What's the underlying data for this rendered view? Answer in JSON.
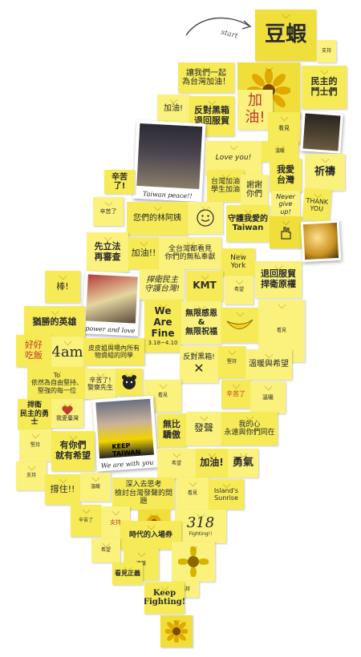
{
  "start_label": "start",
  "notes": {
    "title": "豆蝦",
    "taiwan_cheer": "讓我們一起\n為台灣加油！",
    "jiayou": "加油!",
    "fight_dark": "反對黑箱\n退回服貿",
    "democracy": "民主的\n鬥士們",
    "thanks": "謝謝\n你們",
    "love_you": "Love you!",
    "xinku": "辛苦了!",
    "pray": "祈禱",
    "i_love_taiwan": "我愛\n台灣",
    "taiwan_students": "台灣加油\n學生加油",
    "never": "Never\ngive up!",
    "thank_you": "THANK\nYOU",
    "feeling": "您們的林阿姨",
    "guard_taiwan": "守護我愛的\nTaiwan",
    "first_law": "先立法\n再審查",
    "jiayou2": "加油!!",
    "whole_taiwan": "全台灣都看見\n你們的無私奉獻",
    "newyork": "New York",
    "return_trade": "退回服貿\n捍衛原權",
    "democracy_guard": "捍衛民主\n守護台灣!",
    "kmt": "KMT",
    "stick": "棒!",
    "hero": "猶勝的英雄",
    "we_are_fine": "We\nAre\nFine",
    "we_dates": "3.18~4.10",
    "infinite": "無限感恩\n&\n無限祝福",
    "hold": "好好\n吃飯",
    "four_am": "4am",
    "thanks_everyone": "皮皮姐與場內所有\n物資組的同學",
    "against": "反對黑箱!",
    "cross": "✕",
    "warmth": "溫暖與希望",
    "to_you": "To\n依然為自由堅持、\n堅強的每一位",
    "tired": "辛苦了!\n警察先生",
    "brave": "捍衛\n民主的勇士",
    "love_taiwan": "我愛臺灣",
    "have_us": "有你們\n就有希望",
    "incomparable": "無比\n驕傲",
    "speak": "發聲",
    "my_heart": "我的心\n永遠與你們同在",
    "cheer_more": "加油!",
    "courage": "勇氣",
    "support": "撐住!!",
    "reflect": "深入去思考\n檢討台灣發聲的問題",
    "island": "Island's\nSunrise",
    "time": "時代的入場券",
    "n318": "318",
    "fighting_318": "Fighting!!",
    "see_justice": "看見正義",
    "keep_fighting": "Keep\nFighting!",
    "aunt": "支持",
    "calm": "辛苦了",
    "pls": "堅持",
    "see_note": "看見",
    "warm_note": "溫暖",
    "hope_note": "希望"
  },
  "photos": {
    "peace_caption": "Taiwan peace!!",
    "love_caption": "power and love",
    "keep_caption": "We are with you",
    "keep_sign": "KEEP\nTAIWAN"
  },
  "colors": {
    "note": "#f6eb57",
    "note_light": "#fbf27d",
    "note_dark": "#f0de3a",
    "sunflower": "#f2c418"
  }
}
